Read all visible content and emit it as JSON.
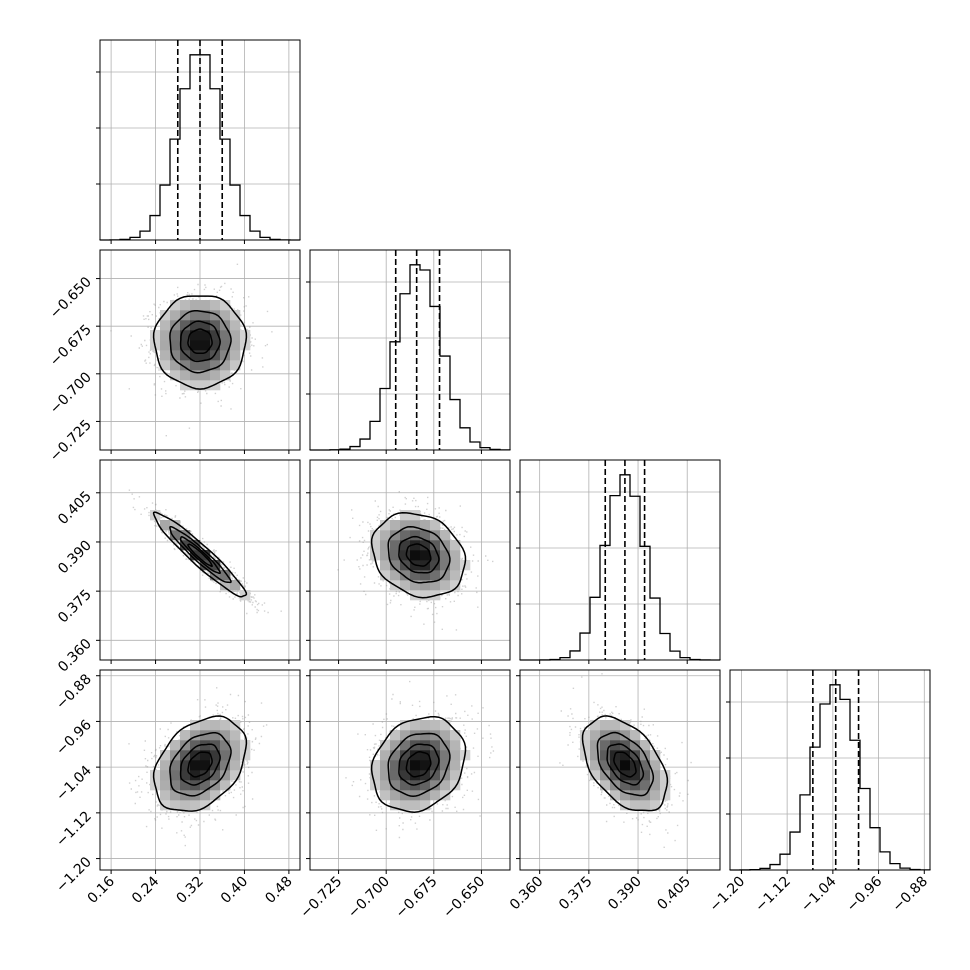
{
  "chart_data": {
    "type": "corner",
    "n_params": 4,
    "grid": true,
    "params": [
      {
        "mean": 0.32,
        "sd": 0.04,
        "q16": 0.28,
        "q50": 0.32,
        "q84": 0.36,
        "range": [
          0.14,
          0.5
        ],
        "ticks": [
          0.16,
          0.24,
          0.32,
          0.4,
          0.48
        ],
        "tick_labels": [
          "0.16",
          "0.24",
          "0.32",
          "0.40",
          "0.48"
        ]
      },
      {
        "mean": -0.683,
        "sd": 0.0118,
        "q16": -0.695,
        "q50": -0.684,
        "q84": -0.672,
        "range": [
          -0.74,
          -0.635
        ],
        "ticks": [
          -0.725,
          -0.7,
          -0.675,
          -0.65
        ],
        "tick_labels": [
          "−0.725",
          "−0.700",
          "−0.675",
          "−0.650"
        ]
      },
      {
        "mean": 0.386,
        "sd": 0.0062,
        "q16": 0.38,
        "q50": 0.386,
        "q84": 0.392,
        "range": [
          0.354,
          0.415
        ],
        "ticks": [
          0.36,
          0.375,
          0.39,
          0.405
        ],
        "tick_labels": [
          "0.360",
          "0.375",
          "0.390",
          "0.405"
        ]
      },
      {
        "mean": -1.035,
        "sd": 0.04,
        "q16": -1.075,
        "q50": -1.035,
        "q84": -0.995,
        "range": [
          -1.22,
          -0.87
        ],
        "ticks": [
          -1.2,
          -1.12,
          -1.04,
          -0.96,
          -0.88
        ],
        "tick_labels": [
          "−1.20",
          "−1.12",
          "−1.04",
          "−0.96",
          "−0.88"
        ]
      }
    ],
    "correlations": [
      [
        1.0,
        0.0,
        -0.95,
        0.35
      ],
      [
        0.0,
        1.0,
        -0.2,
        0.2
      ],
      [
        -0.95,
        -0.2,
        1.0,
        -0.45
      ],
      [
        0.35,
        0.2,
        -0.45,
        1.0
      ]
    ],
    "colors": {
      "points": "#999999",
      "contour": "#000000",
      "density_max": "#000000"
    }
  }
}
